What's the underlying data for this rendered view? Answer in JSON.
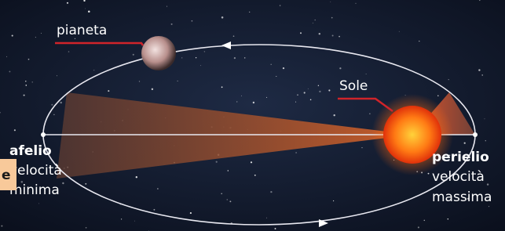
{
  "labels": {
    "planet": "pianeta",
    "sun": "Sole",
    "aphelion": {
      "title": "afelio",
      "line1": "velocità",
      "line2": "minima"
    },
    "perihelion": {
      "title": "perielio",
      "line1": "velocità",
      "line2": "massima"
    },
    "clipped_label": "e"
  }
}
